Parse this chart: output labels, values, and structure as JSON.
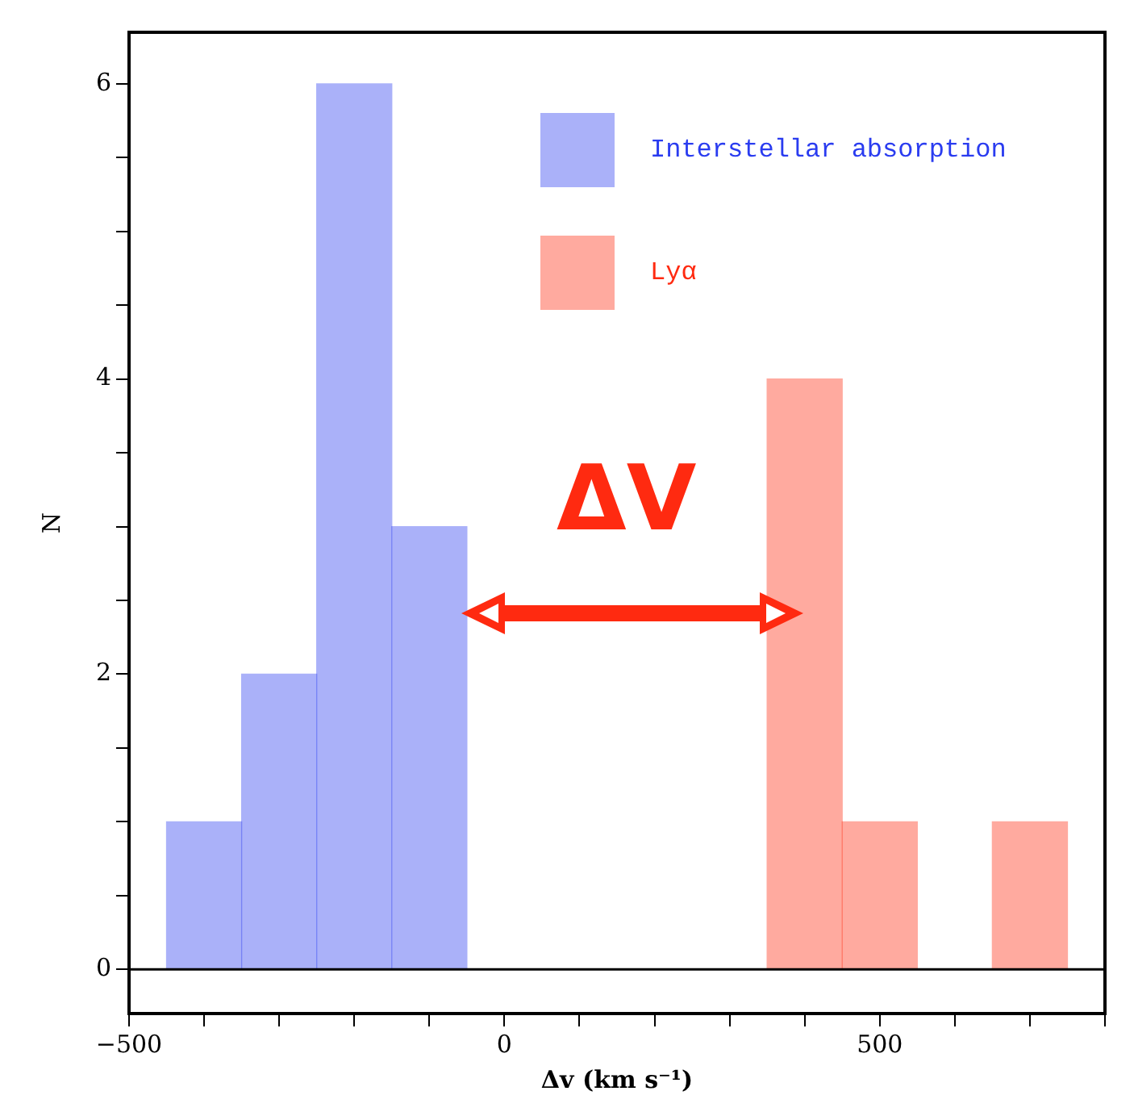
{
  "chart_data": {
    "type": "histogram",
    "xlabel": "Δv (km s⁻¹)",
    "ylabel": "N",
    "bins": [
      -450,
      -350,
      -250,
      -150,
      -50,
      50,
      150,
      250,
      350,
      450,
      550,
      650,
      750
    ],
    "series": [
      {
        "name": "Interstellar absorption",
        "color": "#2a3cf0",
        "values": [
          1,
          2,
          6,
          3,
          0,
          0,
          0,
          0,
          0,
          0,
          0,
          0
        ]
      },
      {
        "name": "Lyα",
        "color": "#ff2a10",
        "values": [
          0,
          0,
          0,
          0,
          0,
          0,
          0,
          0,
          4,
          1,
          0,
          1
        ]
      }
    ],
    "xlim": [
      -500,
      800
    ],
    "xticks": [
      -500,
      {
        "value": -400,
        "label": null
      },
      {
        "value": -300,
        "label": null
      },
      {
        "value": -200,
        "label": null
      },
      {
        "value": -100,
        "label": null
      },
      0,
      {
        "value": 100,
        "label": null
      },
      {
        "value": 200,
        "label": null
      },
      {
        "value": 300,
        "label": null
      },
      {
        "value": 400,
        "label": null
      },
      500,
      {
        "value": 600,
        "label": null
      },
      {
        "value": 700,
        "label": null
      },
      {
        "value": 800,
        "label": null
      }
    ],
    "ylim": [
      -0.3,
      6.35
    ],
    "yticks": [
      0,
      {
        "value": 0.5,
        "label": null
      },
      {
        "value": 1,
        "label": null
      },
      {
        "value": 1.5,
        "label": null
      },
      2,
      {
        "value": 2.5,
        "label": null
      },
      {
        "value": 3,
        "label": null
      },
      {
        "value": 3.5,
        "label": null
      },
      4,
      {
        "value": 4.5,
        "label": null
      },
      {
        "value": 5,
        "label": null
      },
      {
        "value": 5.5,
        "label": null
      },
      6
    ],
    "ref_lines": [
      {
        "axis": "y",
        "value": 0,
        "color": "#000000"
      }
    ],
    "annotations": [
      "ΔV"
    ],
    "legend": "top right",
    "grid": false
  }
}
